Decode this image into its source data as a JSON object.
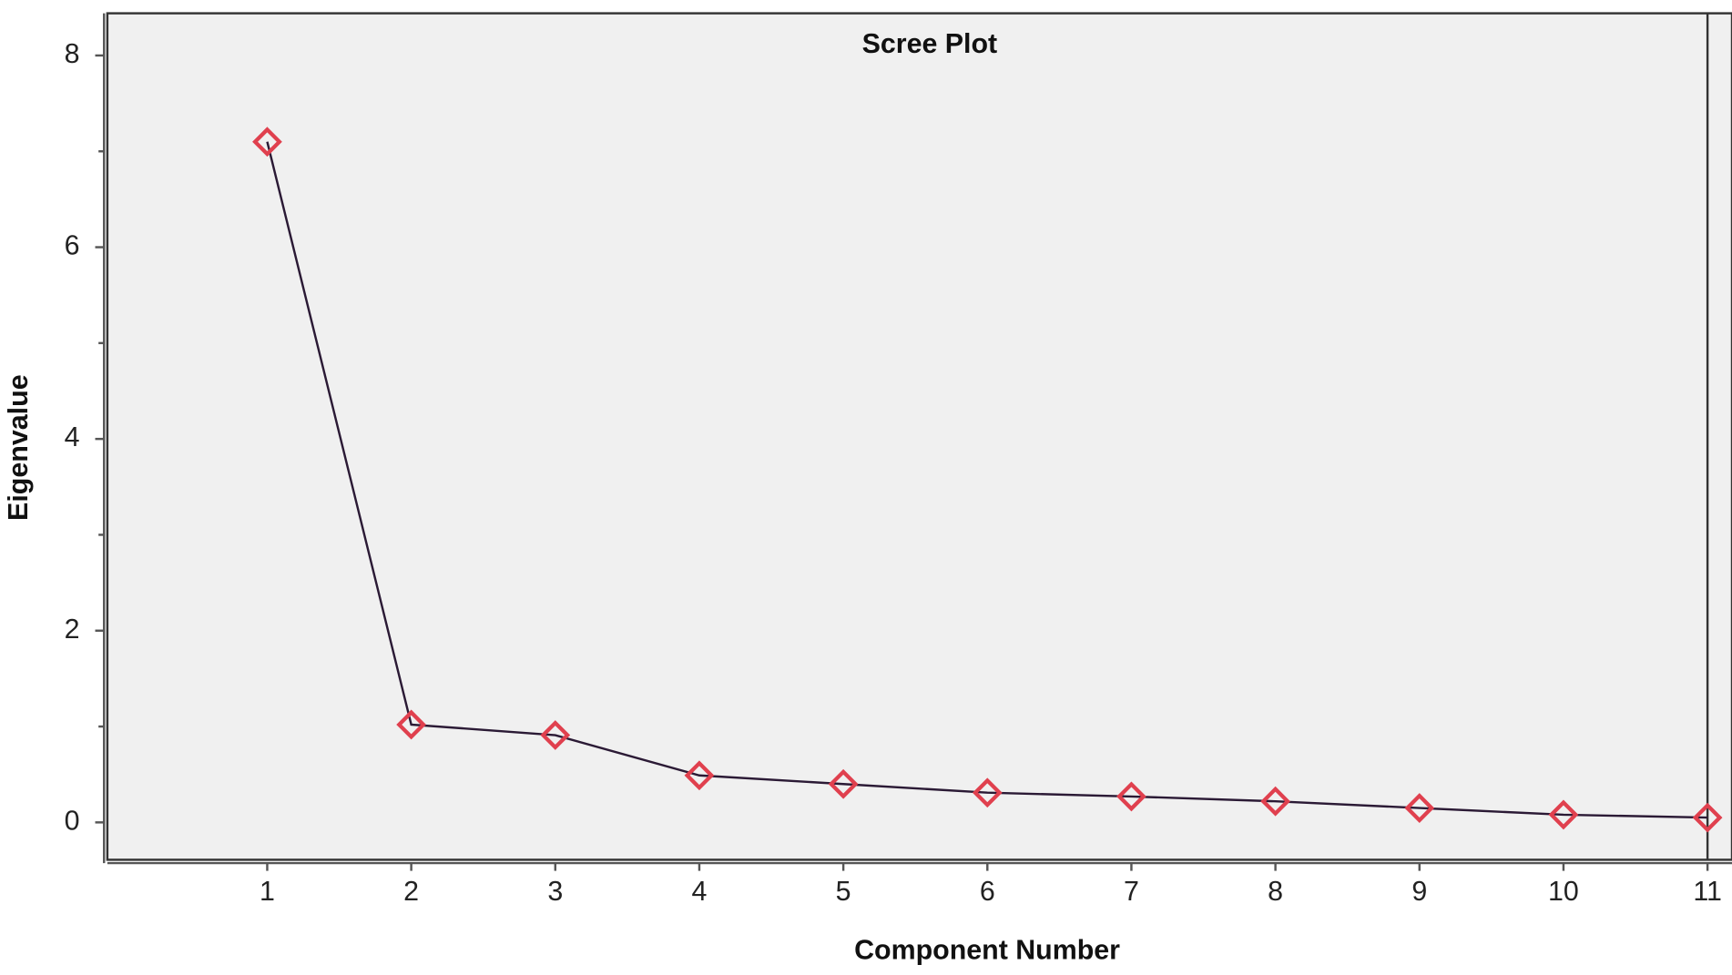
{
  "chart_data": {
    "type": "line",
    "title": "Scree Plot",
    "x_label": "Component Number",
    "y_label": "Eigenvalue",
    "x": [
      1,
      2,
      3,
      4,
      5,
      6,
      7,
      8,
      9,
      10,
      11
    ],
    "series": [
      {
        "values": [
          7.1,
          1.02,
          0.91,
          0.49,
          0.4,
          0.31,
          0.27,
          0.22,
          0.15,
          0.08,
          0.05
        ],
        "color": "#2b1a35",
        "marker_color": "#e0404e"
      }
    ],
    "xlim": [
      -0.11,
      11.17
    ],
    "ylim": [
      -0.39,
      8.44
    ],
    "xticks": [
      1,
      2,
      3,
      4,
      5,
      6,
      7,
      8,
      9,
      10,
      11
    ],
    "yticks": [
      0,
      2,
      4,
      6,
      8
    ],
    "yminorticks": [
      1,
      3,
      5,
      7
    ]
  }
}
